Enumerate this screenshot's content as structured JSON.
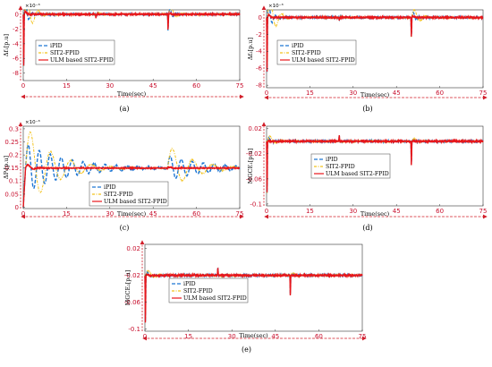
{
  "colors": {
    "ipid": "#1f77d4",
    "sit2": "#f2c21b",
    "ulm": "#e8161b",
    "axis_arrow": "#d21f2a",
    "tick": "#c8102e"
  },
  "legend_labels": [
    "iPID",
    "SIT2-FPID",
    "ULM based SIT2-FPID"
  ],
  "chart_data": [
    {
      "id": "a",
      "type": "line",
      "caption": "(a)",
      "ylabel": "Δf₁[p.u]",
      "xlabel": "Time(sec)",
      "exponent": "×10⁻³",
      "xlim": [
        0,
        75
      ],
      "ylim": [
        -9,
        0.6
      ],
      "xticks": [
        0,
        15,
        30,
        45,
        60,
        75
      ],
      "yticks": [
        -8,
        -6,
        -4,
        -2,
        0
      ],
      "disturbances": [
        {
          "t": 0,
          "mag": -8.5
        },
        {
          "t": 25,
          "mag": -0.6
        },
        {
          "t": 50,
          "mag": -2.6
        }
      ],
      "series": [
        {
          "name": "iPID",
          "style": "dashed",
          "overshoot": 0.55,
          "period": 2.2,
          "decay": 0.9
        },
        {
          "name": "SIT2-FPID",
          "style": "dashdot",
          "overshoot": 0.85,
          "period": 4.0,
          "decay": 0.45
        },
        {
          "name": "ULM based SIT2-FPID",
          "style": "solid",
          "overshoot": 0.2,
          "period": 3.0,
          "decay": 2.0
        }
      ]
    },
    {
      "id": "b",
      "type": "line",
      "caption": "(b)",
      "ylabel": "Δf₂[p.u]",
      "xlabel": "Time(sec)",
      "exponent": "×10⁻³",
      "xlim": [
        0,
        75
      ],
      "ylim": [
        -8.3,
        0.9
      ],
      "xticks": [
        0,
        15,
        30,
        45,
        60,
        75
      ],
      "yticks": [
        -8,
        -6,
        -4,
        -2,
        0
      ],
      "disturbances": [
        {
          "t": 0,
          "mag": -7.8
        },
        {
          "t": 25,
          "mag": -0.5
        },
        {
          "t": 50,
          "mag": -2.8
        }
      ],
      "series": [
        {
          "name": "iPID",
          "style": "dashed",
          "overshoot": 0.55,
          "period": 2.2,
          "decay": 0.9
        },
        {
          "name": "SIT2-FPID",
          "style": "dashdot",
          "overshoot": 0.8,
          "period": 4.0,
          "decay": 0.45
        },
        {
          "name": "ULM based SIT2-FPID",
          "style": "solid",
          "overshoot": 0.2,
          "period": 3.0,
          "decay": 2.0
        }
      ]
    },
    {
      "id": "c",
      "type": "line",
      "caption": "(c)",
      "ylabel": "ΔPₜ[p.u]",
      "xlabel": "Time(sec)",
      "exponent": "×10⁻³",
      "xlim": [
        0,
        75
      ],
      "ylim": [
        -0.005,
        0.31
      ],
      "xticks": [
        0,
        15,
        30,
        45,
        60,
        75
      ],
      "yticks": [
        0,
        0.05,
        0.1,
        0.15,
        0.2,
        0.25,
        0.3
      ],
      "steady_value": 0.15,
      "series": [
        {
          "name": "iPID",
          "style": "dashed",
          "amplitude": 0.095,
          "period": 3.8,
          "decay": 0.07,
          "dist2": 0.045
        },
        {
          "name": "SIT2-FPID",
          "style": "dashdot",
          "amplitude": 0.165,
          "period": 7.0,
          "decay": 0.11,
          "dist2": 0.09
        },
        {
          "name": "ULM based SIT2-FPID",
          "style": "solid",
          "amplitude": 0.02,
          "period": 4.0,
          "decay": 0.6,
          "dist2": 0.005
        }
      ]
    },
    {
      "id": "d",
      "type": "line",
      "caption": "(d)",
      "ylabel": "MGCE₁[p.u]",
      "xlabel": "Time(sec)",
      "exponent": "",
      "xlim": [
        0,
        75
      ],
      "ylim": [
        -0.103,
        0.024
      ],
      "xticks": [
        0,
        15,
        30,
        45,
        60,
        75
      ],
      "yticks": [
        -0.1,
        -0.06,
        -0.02,
        0.02
      ],
      "baseline": -0.0,
      "steady_value": 0,
      "disturbances": [
        {
          "t": 0,
          "mag": -0.1
        },
        {
          "t": 25,
          "mag": 0.012
        },
        {
          "t": 50,
          "mag": -0.045
        }
      ],
      "series": [
        {
          "name": "iPID",
          "style": "dashed",
          "overshoot": 0.12,
          "period": 2.5,
          "decay": 0.8
        },
        {
          "name": "SIT2-FPID",
          "style": "dashdot",
          "overshoot": 0.2,
          "period": 4.0,
          "decay": 0.45
        },
        {
          "name": "ULM based SIT2-FPID",
          "style": "solid",
          "overshoot": 0.06,
          "period": 3.0,
          "decay": 2.0
        }
      ]
    },
    {
      "id": "e",
      "type": "line",
      "caption": "(e)",
      "ylabel": "MGCE₂[p.u]",
      "xlabel": "Time(sec)",
      "exponent": "",
      "xlim": [
        0,
        75
      ],
      "ylim": [
        -0.103,
        0.026
      ],
      "xticks": [
        0,
        15,
        30,
        45,
        60,
        75
      ],
      "yticks": [
        -0.1,
        -0.06,
        -0.02,
        0.02
      ],
      "steady_value": -0.02,
      "disturbances": [
        {
          "t": 0,
          "mag": -0.085
        },
        {
          "t": 25,
          "mag": 0.014
        },
        {
          "t": 50,
          "mag": -0.035
        }
      ],
      "series": [
        {
          "name": "iPID",
          "style": "dashed",
          "overshoot": 0.12,
          "period": 2.5,
          "decay": 0.8
        },
        {
          "name": "SIT2-FPID",
          "style": "dashdot",
          "overshoot": 0.2,
          "period": 4.0,
          "decay": 0.45
        },
        {
          "name": "ULM based SIT2-FPID",
          "style": "solid",
          "overshoot": 0.06,
          "period": 3.0,
          "decay": 2.0
        }
      ]
    }
  ]
}
